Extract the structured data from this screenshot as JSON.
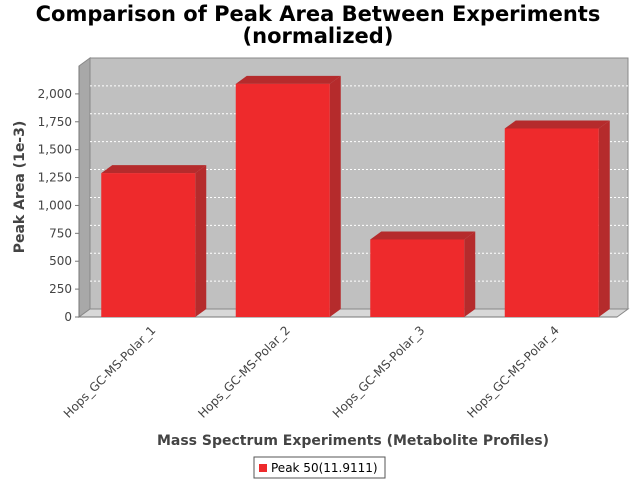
{
  "chart_data": {
    "type": "bar",
    "title": "Comparison of Peak Area Between Experiments",
    "subtitle": "(normalized)",
    "xlabel": "Mass Spectrum Experiments (Metabolite Profiles)",
    "ylabel": "Peak Area (1e-3)",
    "categories": [
      "Hops_GC-MS-Polar_1",
      "Hops_GC-MS-Polar_2",
      "Hops_GC-MS-Polar_3",
      "Hops_GC-MS-Polar_4"
    ],
    "series": [
      {
        "name": "Peak 50(11.9111)",
        "values": [
          1290,
          2090,
          695,
          1690
        ],
        "color": "#ee2a2c"
      }
    ],
    "ylim": [
      0,
      2250
    ],
    "yticks": [
      0,
      250,
      500,
      750,
      1000,
      1250,
      1500,
      1750,
      2000
    ],
    "ytick_labels": [
      "0",
      "250",
      "500",
      "750",
      "1,000",
      "1,250",
      "1,500",
      "1,750",
      "2,000"
    ],
    "grid": true,
    "legend_position": "bottom",
    "plot_background": "#c0c0c0",
    "style": "3d"
  }
}
